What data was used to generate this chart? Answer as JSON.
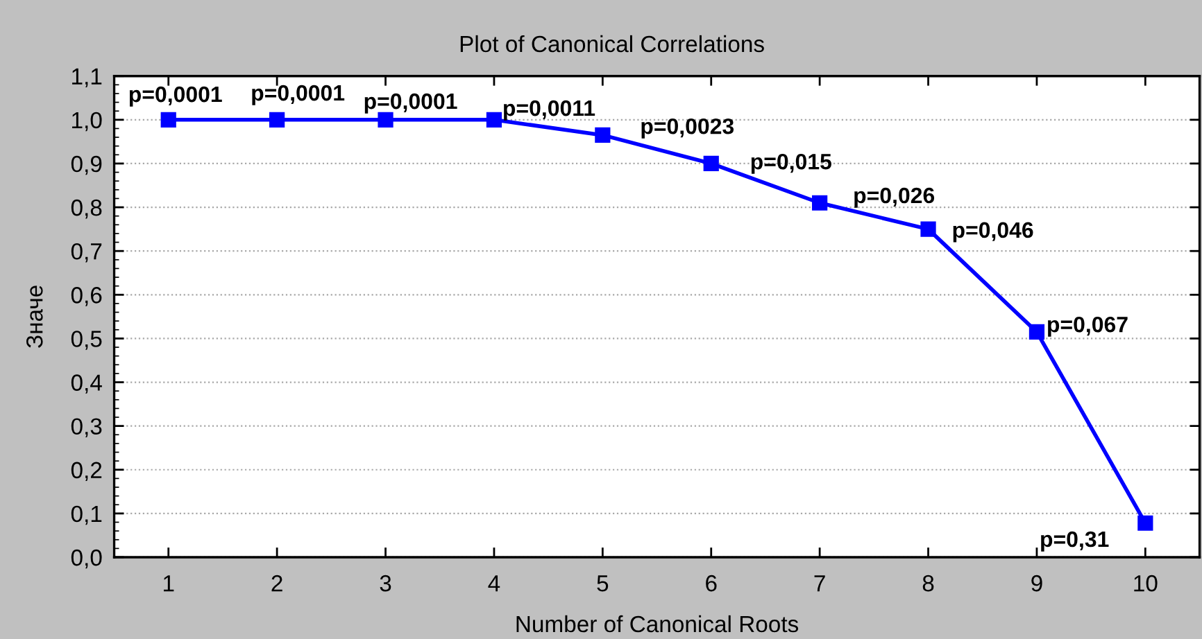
{
  "chart_data": {
    "type": "line",
    "title": "Plot of Canonical Correlations",
    "xlabel": "Number of Canonical Roots",
    "ylabel": "Значе",
    "x": [
      1,
      2,
      3,
      4,
      5,
      6,
      7,
      8,
      9,
      10
    ],
    "series": [
      {
        "color": "#0000ff",
        "values": [
          1.0,
          1.0,
          1.0,
          1.0,
          0.965,
          0.9,
          0.81,
          0.75,
          0.515,
          0.078
        ]
      }
    ],
    "annotations": [
      {
        "text": "p=0,0001",
        "x": 1,
        "y": 1.0
      },
      {
        "text": "p=0,0001",
        "x": 2,
        "y": 1.0
      },
      {
        "text": "p=0,0001",
        "x": 3,
        "y": 1.0
      },
      {
        "text": "p=0,0011",
        "x": 4,
        "y": 1.0
      },
      {
        "text": "p=0,0023",
        "x": 5,
        "y": 0.965
      },
      {
        "text": "p=0,015",
        "x": 6,
        "y": 0.9
      },
      {
        "text": "p=0,026",
        "x": 7,
        "y": 0.81
      },
      {
        "text": "p=0,046",
        "x": 8,
        "y": 0.75
      },
      {
        "text": "p=0,067",
        "x": 9,
        "y": 0.515
      },
      {
        "text": "p=0,31",
        "x": 10,
        "y": 0.078
      }
    ],
    "xlim": [
      0.5,
      10.5
    ],
    "xticks": [
      1,
      2,
      3,
      4,
      5,
      6,
      7,
      8,
      9,
      10
    ],
    "ylim": [
      0,
      1.1
    ],
    "yticks": [
      {
        "value": 0,
        "label": "0,0"
      },
      {
        "value": 0.1,
        "label": "0,1"
      },
      {
        "value": 0.2,
        "label": "0,2"
      },
      {
        "value": 0.3,
        "label": "0,3"
      },
      {
        "value": 0.4,
        "label": "0,4"
      },
      {
        "value": 0.5,
        "label": "0,5"
      },
      {
        "value": 0.6,
        "label": "0,6"
      },
      {
        "value": 0.7,
        "label": "0,7"
      },
      {
        "value": 0.8,
        "label": "0,8"
      },
      {
        "value": 0.9,
        "label": "0,9"
      },
      {
        "value": 1.0,
        "label": "1,0"
      },
      {
        "value": 1.1,
        "label": "1,1"
      }
    ],
    "grid": "y",
    "marker": "square",
    "line_style": "solid"
  }
}
